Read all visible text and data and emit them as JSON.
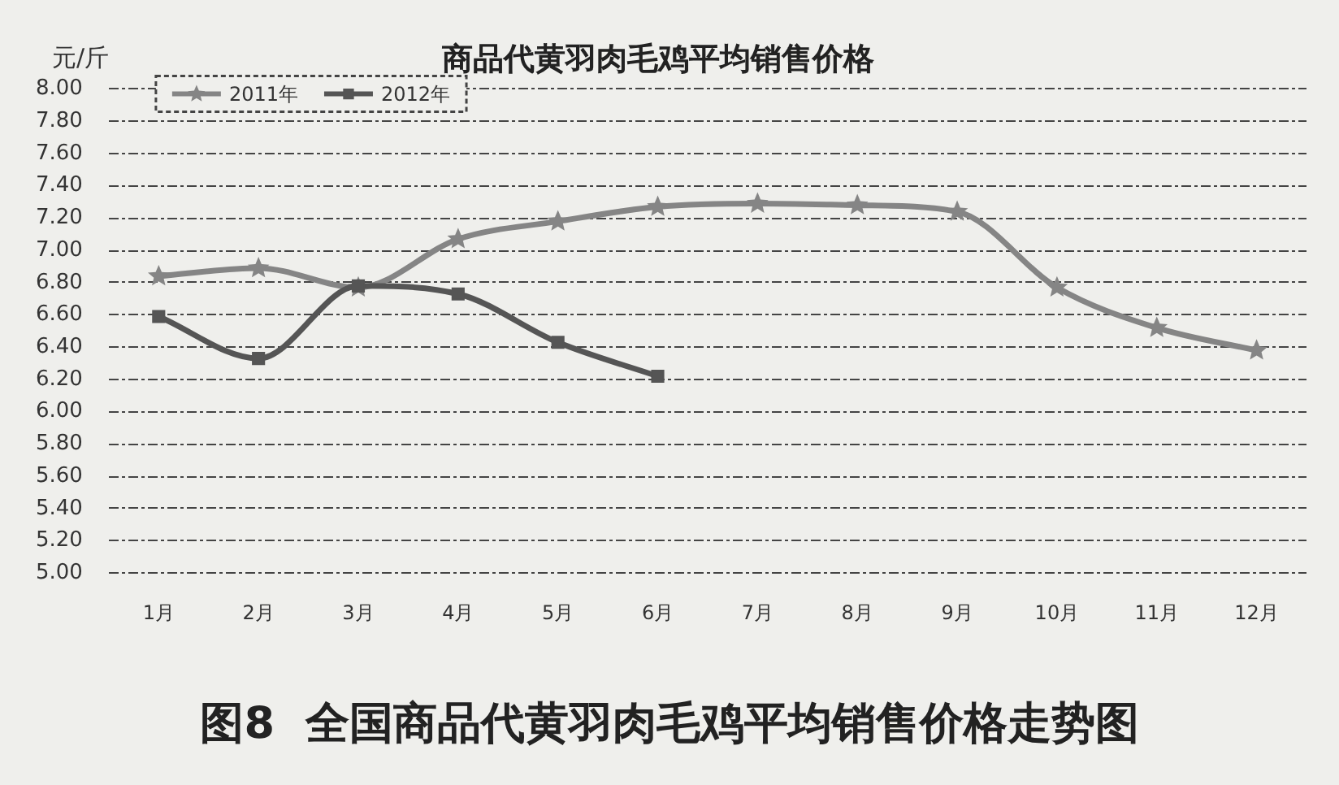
{
  "chart_data": {
    "type": "line",
    "title": "商品代黄羽肉毛鸡平均销售价格",
    "ylabel": "元/斤",
    "categories": [
      "1月",
      "2月",
      "3月",
      "4月",
      "5月",
      "6月",
      "7月",
      "8月",
      "9月",
      "10月",
      "11月",
      "12月"
    ],
    "series": [
      {
        "name": "2011年",
        "color": "#858585",
        "marker": "star",
        "values": [
          6.84,
          6.89,
          6.77,
          7.07,
          7.18,
          7.27,
          7.29,
          7.28,
          7.24,
          6.77,
          6.52,
          6.38
        ]
      },
      {
        "name": "2012年",
        "color": "#555555",
        "marker": "square",
        "values": [
          6.59,
          6.33,
          6.78,
          6.73,
          6.43,
          6.22,
          null,
          null,
          null,
          null,
          null,
          null
        ]
      }
    ],
    "ylim": [
      5,
      8
    ],
    "yticks": [
      {
        "value": 5,
        "label": "5.00"
      },
      {
        "value": 5.2,
        "label": "5.20"
      },
      {
        "value": 5.4,
        "label": "5.40"
      },
      {
        "value": 5.6,
        "label": "5.60"
      },
      {
        "value": 5.8,
        "label": "5.80"
      },
      {
        "value": 6,
        "label": "6.00"
      },
      {
        "value": 6.2,
        "label": "6.20"
      },
      {
        "value": 6.4,
        "label": "6.40"
      },
      {
        "value": 6.6,
        "label": "6.60"
      },
      {
        "value": 6.8,
        "label": "6.80"
      },
      {
        "value": 7,
        "label": "7.00"
      },
      {
        "value": 7.2,
        "label": "7.20"
      },
      {
        "value": 7.4,
        "label": "7.40"
      },
      {
        "value": 7.6,
        "label": "7.60"
      },
      {
        "value": 7.8,
        "label": "7.80"
      },
      {
        "value": 8,
        "label": "8.00"
      }
    ],
    "grid": "y",
    "legend": "top left",
    "line_style": "solid",
    "annotations": [
      "图8  全国商品代黄羽肉毛鸡平均销售价格走势图"
    ]
  }
}
